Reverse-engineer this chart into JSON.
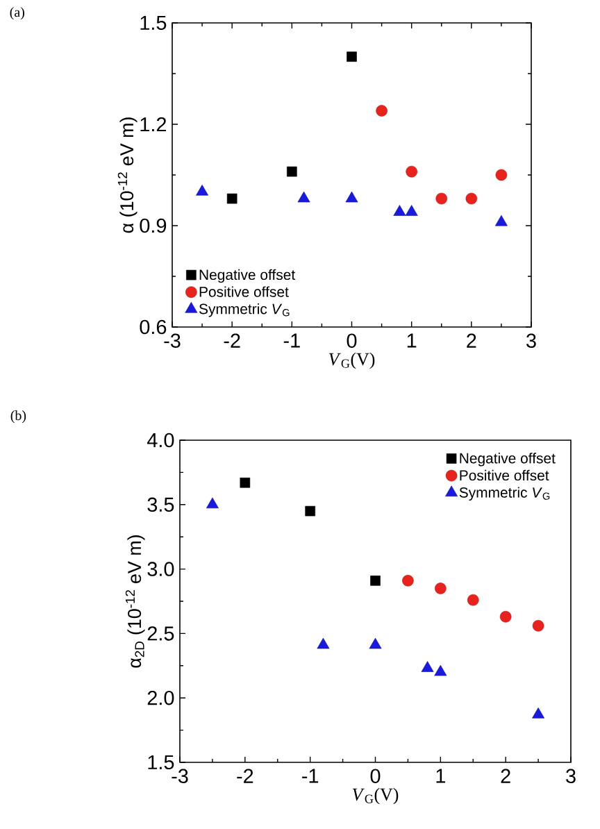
{
  "chart_data": [
    {
      "type": "scatter",
      "annotations": [
        "(a)"
      ],
      "xlabel": "*V*$_{G}$(V)",
      "ylabel": "α (10$^{-12}$ eV m)",
      "xlim": [
        -3,
        3
      ],
      "xticks": [
        -3,
        -2,
        -1,
        0,
        1,
        2,
        3
      ],
      "ylim": [
        0.6,
        1.5
      ],
      "yticks": [
        0.6,
        0.9,
        1.2,
        1.5
      ],
      "legend": "bottom left",
      "series": [
        {
          "name": "Negative offset",
          "color": "#000000",
          "marker": "square",
          "x": [
            -2,
            -1,
            0
          ],
          "values": [
            0.98,
            1.06,
            1.4
          ]
        },
        {
          "name": "Positive offset",
          "color": "#e8231e",
          "marker": "circle",
          "x": [
            0.5,
            1,
            1.5,
            2,
            2.5
          ],
          "values": [
            1.24,
            1.06,
            0.98,
            0.98,
            1.05
          ]
        },
        {
          "name": "Symmetric *V*$_{G}$",
          "color": "#1a1adc",
          "marker": "triangle",
          "x": [
            -2.5,
            -0.8,
            0,
            0.8,
            1,
            2.5
          ],
          "values": [
            1.0,
            0.98,
            0.98,
            0.94,
            0.94,
            0.91
          ]
        }
      ]
    },
    {
      "type": "scatter",
      "annotations": [
        "(b)"
      ],
      "xlabel": "*V*$_{G}$(V)",
      "ylabel": "α$_{2D}$ (10$^{-12}$ eV m)",
      "xlim": [
        -3,
        3
      ],
      "xticks": [
        -3,
        -2,
        -1,
        0,
        1,
        2,
        3
      ],
      "ylim": [
        1.5,
        4.0
      ],
      "yticks": [
        1.5,
        {
          "value": 2,
          "label": "2.0"
        },
        2.5,
        {
          "value": 3,
          "label": "3.0"
        },
        3.5,
        {
          "value": 4,
          "label": "4.0"
        }
      ],
      "legend": "top right",
      "series": [
        {
          "name": "Negative offset",
          "color": "#000000",
          "marker": "square",
          "x": [
            -2,
            -1,
            0
          ],
          "values": [
            3.67,
            3.45,
            2.91
          ]
        },
        {
          "name": "Positive offset",
          "color": "#e8231e",
          "marker": "circle",
          "x": [
            0.5,
            1,
            1.5,
            2,
            2.5
          ],
          "values": [
            2.91,
            2.85,
            2.76,
            2.63,
            2.56
          ]
        },
        {
          "name": "Symmetric *V*$_{G}$",
          "color": "#1a1adc",
          "marker": "triangle",
          "x": [
            -2.5,
            -0.8,
            0,
            0.8,
            1,
            2.5
          ],
          "values": [
            3.5,
            2.41,
            2.41,
            2.23,
            2.2,
            1.87
          ]
        }
      ]
    }
  ]
}
